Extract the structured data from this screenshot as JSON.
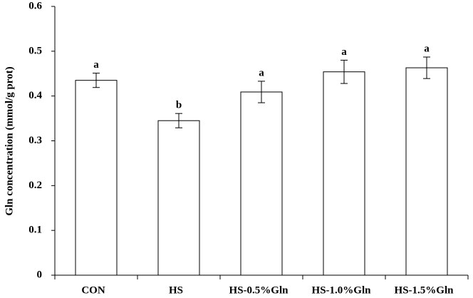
{
  "chart_data": {
    "type": "bar",
    "y_label": "Gln concentration (mmol/g prot)",
    "categories": [
      "CON",
      "HS",
      "HS-0.5%Gln",
      "HS-1.0%Gln",
      "HS-1.5%Gln"
    ],
    "values": [
      0.435,
      0.345,
      0.409,
      0.454,
      0.463
    ],
    "errors": [
      0.016,
      0.016,
      0.024,
      0.026,
      0.024
    ],
    "significance": [
      "a",
      "b",
      "a",
      "a",
      "a"
    ],
    "color": "#ffffff",
    "ylim": [
      0,
      0.6
    ],
    "yticks": [
      0,
      0.1,
      0.2,
      0.3,
      0.4,
      0.5,
      0.6
    ]
  }
}
